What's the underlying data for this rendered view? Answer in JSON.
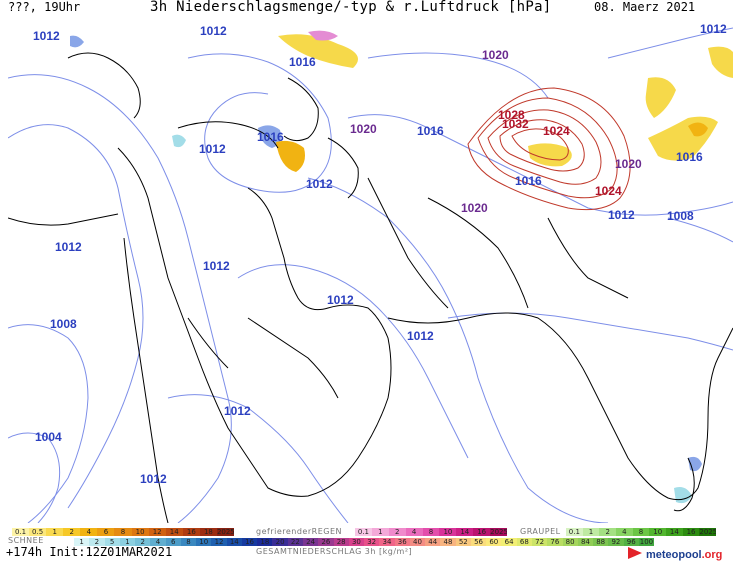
{
  "header": {
    "left": "???, 19Uhr",
    "title": "3h Niederschlagsmenge/-typ & r.Luftdruck [hPa]",
    "date": "08. Maerz 2021"
  },
  "map": {
    "isobar_labels": [
      {
        "text": "1012",
        "color": "blue"
      },
      {
        "text": "1012",
        "color": "blue"
      },
      {
        "text": "1016",
        "color": "blue"
      },
      {
        "text": "1020",
        "color": "purple"
      },
      {
        "text": "1012",
        "color": "blue"
      },
      {
        "text": "1016",
        "color": "blue"
      },
      {
        "text": "1012",
        "color": "blue"
      },
      {
        "text": "1020",
        "color": "purple"
      },
      {
        "text": "1016",
        "color": "blue"
      },
      {
        "text": "1012",
        "color": "blue"
      },
      {
        "text": "1028",
        "color": "red"
      },
      {
        "text": "1032",
        "color": "red"
      },
      {
        "text": "1024",
        "color": "red"
      },
      {
        "text": "1020",
        "color": "purple"
      },
      {
        "text": "1016",
        "color": "blue"
      },
      {
        "text": "1016",
        "color": "blue"
      },
      {
        "text": "1024",
        "color": "red"
      },
      {
        "text": "1020",
        "color": "purple"
      },
      {
        "text": "1012",
        "color": "blue"
      },
      {
        "text": "1008",
        "color": "blue"
      },
      {
        "text": "1012",
        "color": "blue"
      },
      {
        "text": "1012",
        "color": "blue"
      },
      {
        "text": "1012",
        "color": "blue"
      },
      {
        "text": "1008",
        "color": "blue"
      },
      {
        "text": "1012",
        "color": "blue"
      },
      {
        "text": "1012",
        "color": "blue"
      },
      {
        "text": "1004",
        "color": "blue"
      },
      {
        "text": "1012",
        "color": "blue"
      }
    ],
    "colors": {
      "blue": "#2b3fbf",
      "purple": "#6a2a8f",
      "red": "#b0122a",
      "coast": "#000000",
      "isobar_blue": "#7d8ee8",
      "isobar_red": "#c0392b"
    }
  },
  "legend": {
    "snow_label": "SCHNEE",
    "regen_label": "gefrierenderREGEN",
    "graupel_label": "GRAUPEL",
    "total_label": "GESAMTNIEDERSCHLAG 3h [kg/m²]",
    "rain_bar": [
      "0.1",
      "0.5",
      "1",
      "2",
      "4",
      "6",
      "8",
      "10",
      "12",
      "14",
      "16",
      "18",
      "2025+"
    ],
    "rain_colors": [
      "#fdf3a6",
      "#fbe77c",
      "#f9d94f",
      "#f6c827",
      "#f1b312",
      "#ec9f12",
      "#e58b12",
      "#dd7712",
      "#d06212",
      "#c14f12",
      "#b03d12",
      "#9c2d12",
      "#872112"
    ],
    "freezing_bar": [
      "0.1",
      "1",
      "2",
      "4",
      "8",
      "10",
      "14",
      "16",
      "2025+"
    ],
    "freezing_colors": [
      "#f7c6e6",
      "#f4a9d9",
      "#f08bcc",
      "#ea6cbd",
      "#e34eac",
      "#d9339a",
      "#cc1f86",
      "#bb1270",
      "#a70a5b"
    ],
    "graupel_bar": [
      "0.1",
      "1",
      "2",
      "4",
      "8",
      "10",
      "14",
      "16",
      "2025+"
    ],
    "graupel_colors": [
      "#d7f2c2",
      "#bfeaa3",
      "#a4e083",
      "#88d463",
      "#6cc646",
      "#52b62f",
      "#3da21d",
      "#2c8c10",
      "#1e7508"
    ],
    "snow_bar": [
      "1",
      "2",
      "5",
      "1",
      "2",
      "4",
      "6",
      "8",
      "10",
      "12",
      "14",
      "16",
      "18",
      "20",
      "22",
      "24",
      "26",
      "28",
      "30",
      "32",
      "34",
      "36",
      "40",
      "44",
      "48",
      "52",
      "56",
      "60",
      "64",
      "68",
      "72",
      "76",
      "80",
      "84",
      "88",
      "92",
      "96",
      "100"
    ],
    "snow_colors": [
      "#d9f5f7",
      "#bde9ef",
      "#a3dde8",
      "#8bcfe0",
      "#75c0d8",
      "#60aed0",
      "#4c9cc8",
      "#3a88c0",
      "#2a74b8",
      "#1f60b0",
      "#184ca8",
      "#163aa0",
      "#1b2a98",
      "#3a2d96",
      "#5a3194",
      "#7a3592",
      "#9a3990",
      "#ba3d8e",
      "#d8418c",
      "#e8518a",
      "#f06488",
      "#f27886",
      "#f48c84",
      "#f6a082",
      "#f8b480",
      "#f9c87e",
      "#fadc7c",
      "#fbe97a",
      "#f2ef74",
      "#e0ea6e",
      "#cce468",
      "#b8dd62",
      "#a4d55c",
      "#90cd56",
      "#7cc450",
      "#68bb4a",
      "#54b144",
      "#40a73e"
    ],
    "bottom_left": "+174h Init:12Z01MAR2021",
    "logo_main": "meteopool",
    "logo_dot": ".org"
  }
}
